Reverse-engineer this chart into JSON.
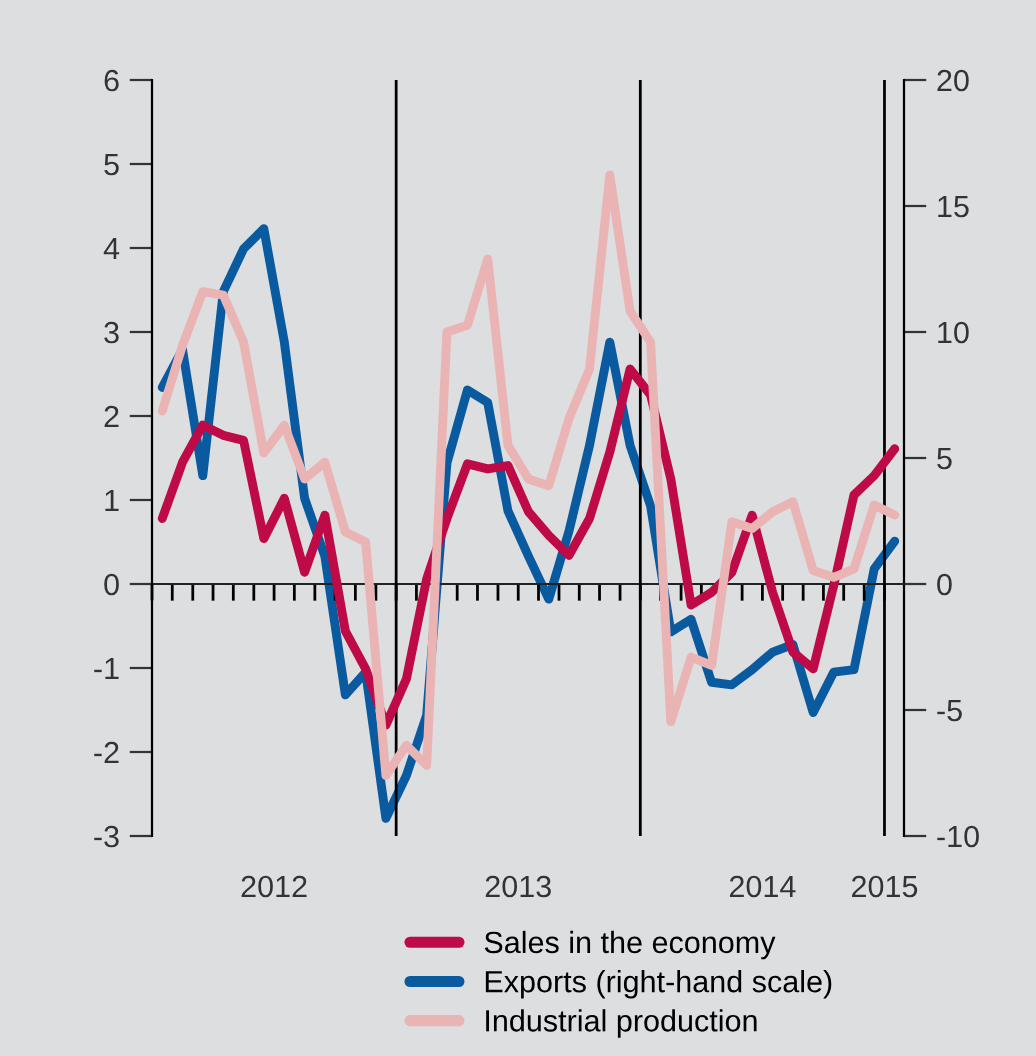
{
  "chart_data": {
    "type": "line",
    "x": [
      2012.042,
      2012.125,
      2012.208,
      2012.292,
      2012.375,
      2012.458,
      2012.542,
      2012.625,
      2012.708,
      2012.792,
      2012.875,
      2012.958,
      2013.042,
      2013.125,
      2013.208,
      2013.292,
      2013.375,
      2013.458,
      2013.542,
      2013.625,
      2013.708,
      2013.792,
      2013.875,
      2013.958,
      2014.042,
      2014.125,
      2014.208,
      2014.292,
      2014.375,
      2014.458,
      2014.542,
      2014.625,
      2014.708,
      2014.792,
      2014.875,
      2014.958,
      2015.042
    ],
    "series": [
      {
        "name": "Sales in the economy",
        "color": "#be0a46",
        "values": [
          0.78,
          1.45,
          1.89,
          1.77,
          1.71,
          0.54,
          1.02,
          0.14,
          0.82,
          -0.56,
          -1.01,
          -1.68,
          -1.13,
          0.06,
          0.78,
          1.43,
          1.37,
          1.41,
          0.86,
          0.58,
          0.34,
          0.78,
          1.57,
          2.56,
          2.25,
          1.25,
          -0.25,
          -0.1,
          0.14,
          0.82,
          -0.1,
          -0.81,
          -1.01,
          -0.02,
          1.06,
          1.29,
          1.61
        ]
      },
      {
        "name": "Exports (right-hand scale)",
        "color": "#0a5aa0",
        "axis": "y2",
        "values": [
          7.8,
          9.3,
          4.3,
          11.6,
          13.3,
          14.1,
          9.6,
          3.4,
          1.1,
          -4.4,
          -3.5,
          -9.3,
          -7.6,
          -5.2,
          4.8,
          7.7,
          7.2,
          2.9,
          1.1,
          -0.6,
          2.1,
          5.5,
          9.6,
          5.5,
          3.1,
          -1.9,
          -1.4,
          -3.9,
          -4.0,
          -3.4,
          -2.7,
          -2.4,
          -5.1,
          -3.5,
          -3.4,
          0.6,
          1.7
        ]
      },
      {
        "name": "Industrial production",
        "color": "#ebb4b4",
        "values": [
          2.06,
          2.84,
          3.48,
          3.44,
          2.88,
          1.56,
          1.89,
          1.25,
          1.45,
          0.62,
          0.5,
          -2.28,
          -1.92,
          -2.16,
          3.0,
          3.08,
          3.87,
          1.65,
          1.25,
          1.17,
          1.97,
          2.56,
          4.87,
          3.25,
          2.88,
          -1.64,
          -0.87,
          -0.97,
          0.74,
          0.66,
          0.86,
          0.98,
          0.16,
          0.08,
          0.18,
          0.94,
          0.82
        ]
      }
    ],
    "xlim": [
      2012.0,
      2015.08
    ],
    "xticks": [
      {
        "value": 2012.5,
        "label": "2012"
      },
      {
        "value": 2013.5,
        "label": "2013"
      },
      {
        "value": 2014.5,
        "label": "2014"
      },
      {
        "value": 2015.0,
        "label": "2015"
      },
      {
        "value": 2012.0,
        "label": null
      },
      {
        "value": 2012.083,
        "label": null
      },
      {
        "value": 2012.167,
        "label": null
      },
      {
        "value": 2012.25,
        "label": null
      },
      {
        "value": 2012.333,
        "label": null
      },
      {
        "value": 2012.417,
        "label": null
      },
      {
        "value": 2012.5,
        "label": null
      },
      {
        "value": 2012.583,
        "label": null
      },
      {
        "value": 2012.667,
        "label": null
      },
      {
        "value": 2012.75,
        "label": null
      },
      {
        "value": 2012.833,
        "label": null
      },
      {
        "value": 2012.917,
        "label": null
      },
      {
        "value": 2013.0,
        "label": null
      },
      {
        "value": 2013.083,
        "label": null
      },
      {
        "value": 2013.167,
        "label": null
      },
      {
        "value": 2013.25,
        "label": null
      },
      {
        "value": 2013.333,
        "label": null
      },
      {
        "value": 2013.417,
        "label": null
      },
      {
        "value": 2013.5,
        "label": null
      },
      {
        "value": 2013.583,
        "label": null
      },
      {
        "value": 2013.667,
        "label": null
      },
      {
        "value": 2013.75,
        "label": null
      },
      {
        "value": 2013.833,
        "label": null
      },
      {
        "value": 2013.917,
        "label": null
      },
      {
        "value": 2014.0,
        "label": null
      },
      {
        "value": 2014.083,
        "label": null
      },
      {
        "value": 2014.167,
        "label": null
      },
      {
        "value": 2014.25,
        "label": null
      },
      {
        "value": 2014.333,
        "label": null
      },
      {
        "value": 2014.417,
        "label": null
      },
      {
        "value": 2014.5,
        "label": null
      },
      {
        "value": 2014.583,
        "label": null
      },
      {
        "value": 2014.667,
        "label": null
      },
      {
        "value": 2014.75,
        "label": null
      },
      {
        "value": 2014.833,
        "label": null
      },
      {
        "value": 2014.917,
        "label": null
      },
      {
        "value": 2015.0,
        "label": null
      }
    ],
    "ylim": [
      -3,
      6
    ],
    "yticks": [
      -3,
      -2,
      -1,
      0,
      1,
      2,
      3,
      4,
      5,
      6
    ],
    "y2lim": [
      -10,
      20
    ],
    "y2ticks": [
      -10,
      -5,
      0,
      5,
      10,
      15,
      20
    ],
    "ref_lines": [
      {
        "axis": "x",
        "value": 2013.0,
        "color": "#000000"
      },
      {
        "axis": "x",
        "value": 2014.0,
        "color": "#000000"
      },
      {
        "axis": "x",
        "value": 2015.0,
        "color": "#000000"
      }
    ],
    "legend": "bottom",
    "grid": false,
    "marker": "none",
    "line_style": "solid"
  }
}
